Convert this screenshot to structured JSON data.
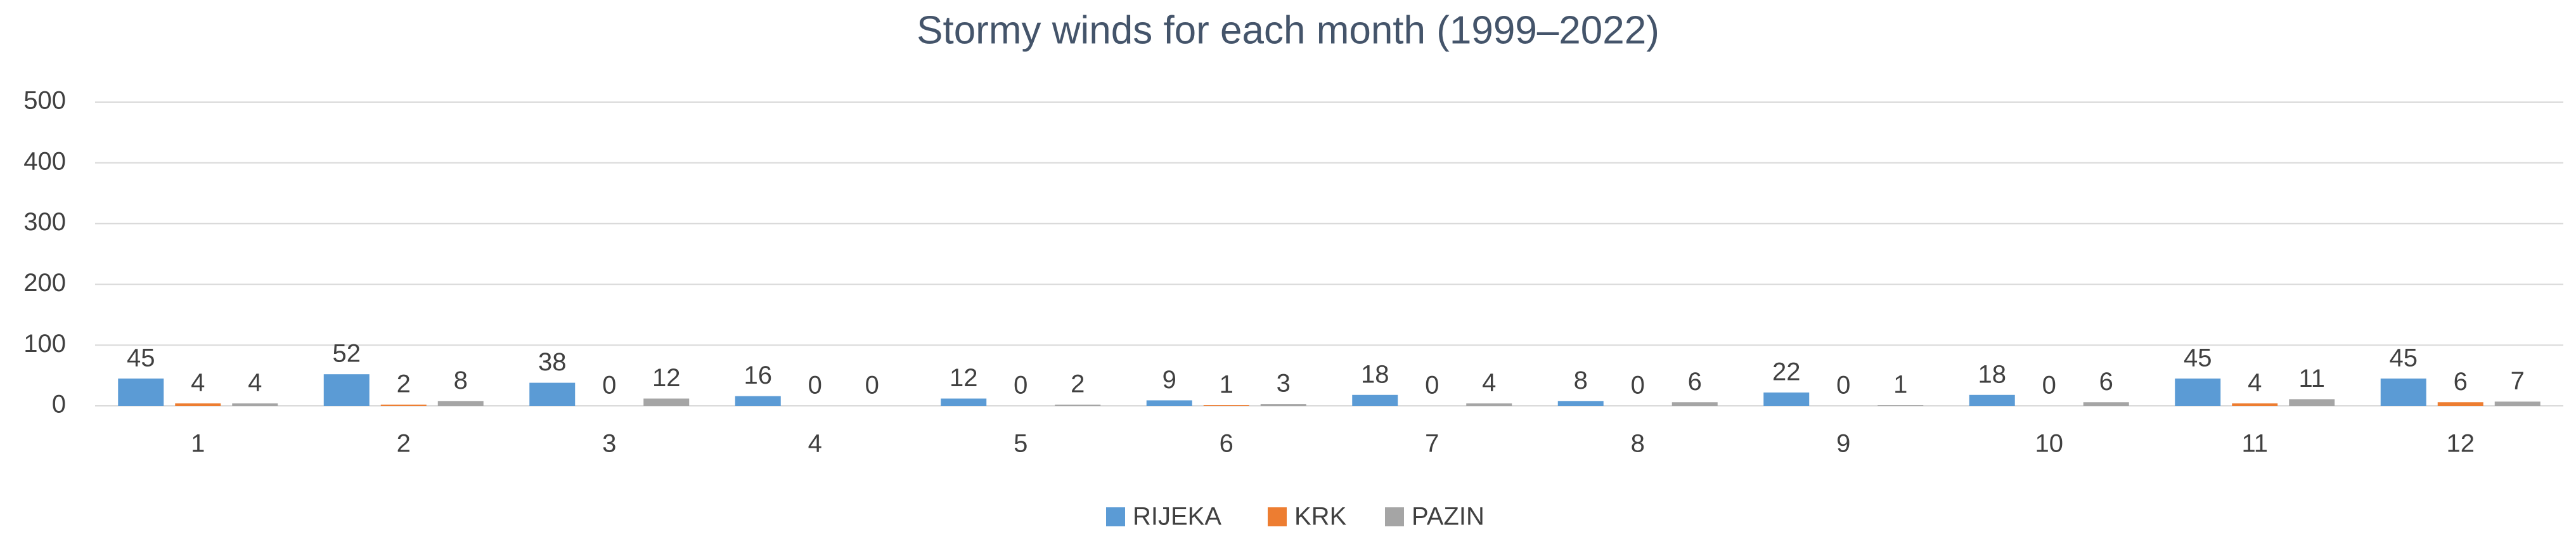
{
  "chart_data": {
    "type": "bar",
    "title": "Stormy winds for each month (1999–2022)",
    "categories": [
      "1",
      "2",
      "3",
      "4",
      "5",
      "6",
      "7",
      "8",
      "9",
      "10",
      "11",
      "12"
    ],
    "series": [
      {
        "name": "RIJEKA",
        "color": "#5b9bd5",
        "values": [
          45,
          52,
          38,
          16,
          12,
          9,
          18,
          8,
          22,
          18,
          45,
          45
        ]
      },
      {
        "name": "KRK",
        "color": "#ed7d31",
        "values": [
          4,
          2,
          0,
          0,
          0,
          1,
          0,
          0,
          0,
          0,
          4,
          6
        ]
      },
      {
        "name": "PAZIN",
        "color": "#a5a5a5",
        "values": [
          4,
          8,
          12,
          0,
          2,
          3,
          4,
          6,
          1,
          6,
          11,
          7
        ]
      }
    ],
    "ylim": [
      0,
      500
    ],
    "yticks": [
      0,
      100,
      200,
      300,
      400,
      500
    ],
    "grid": true,
    "legend": "bottom"
  }
}
